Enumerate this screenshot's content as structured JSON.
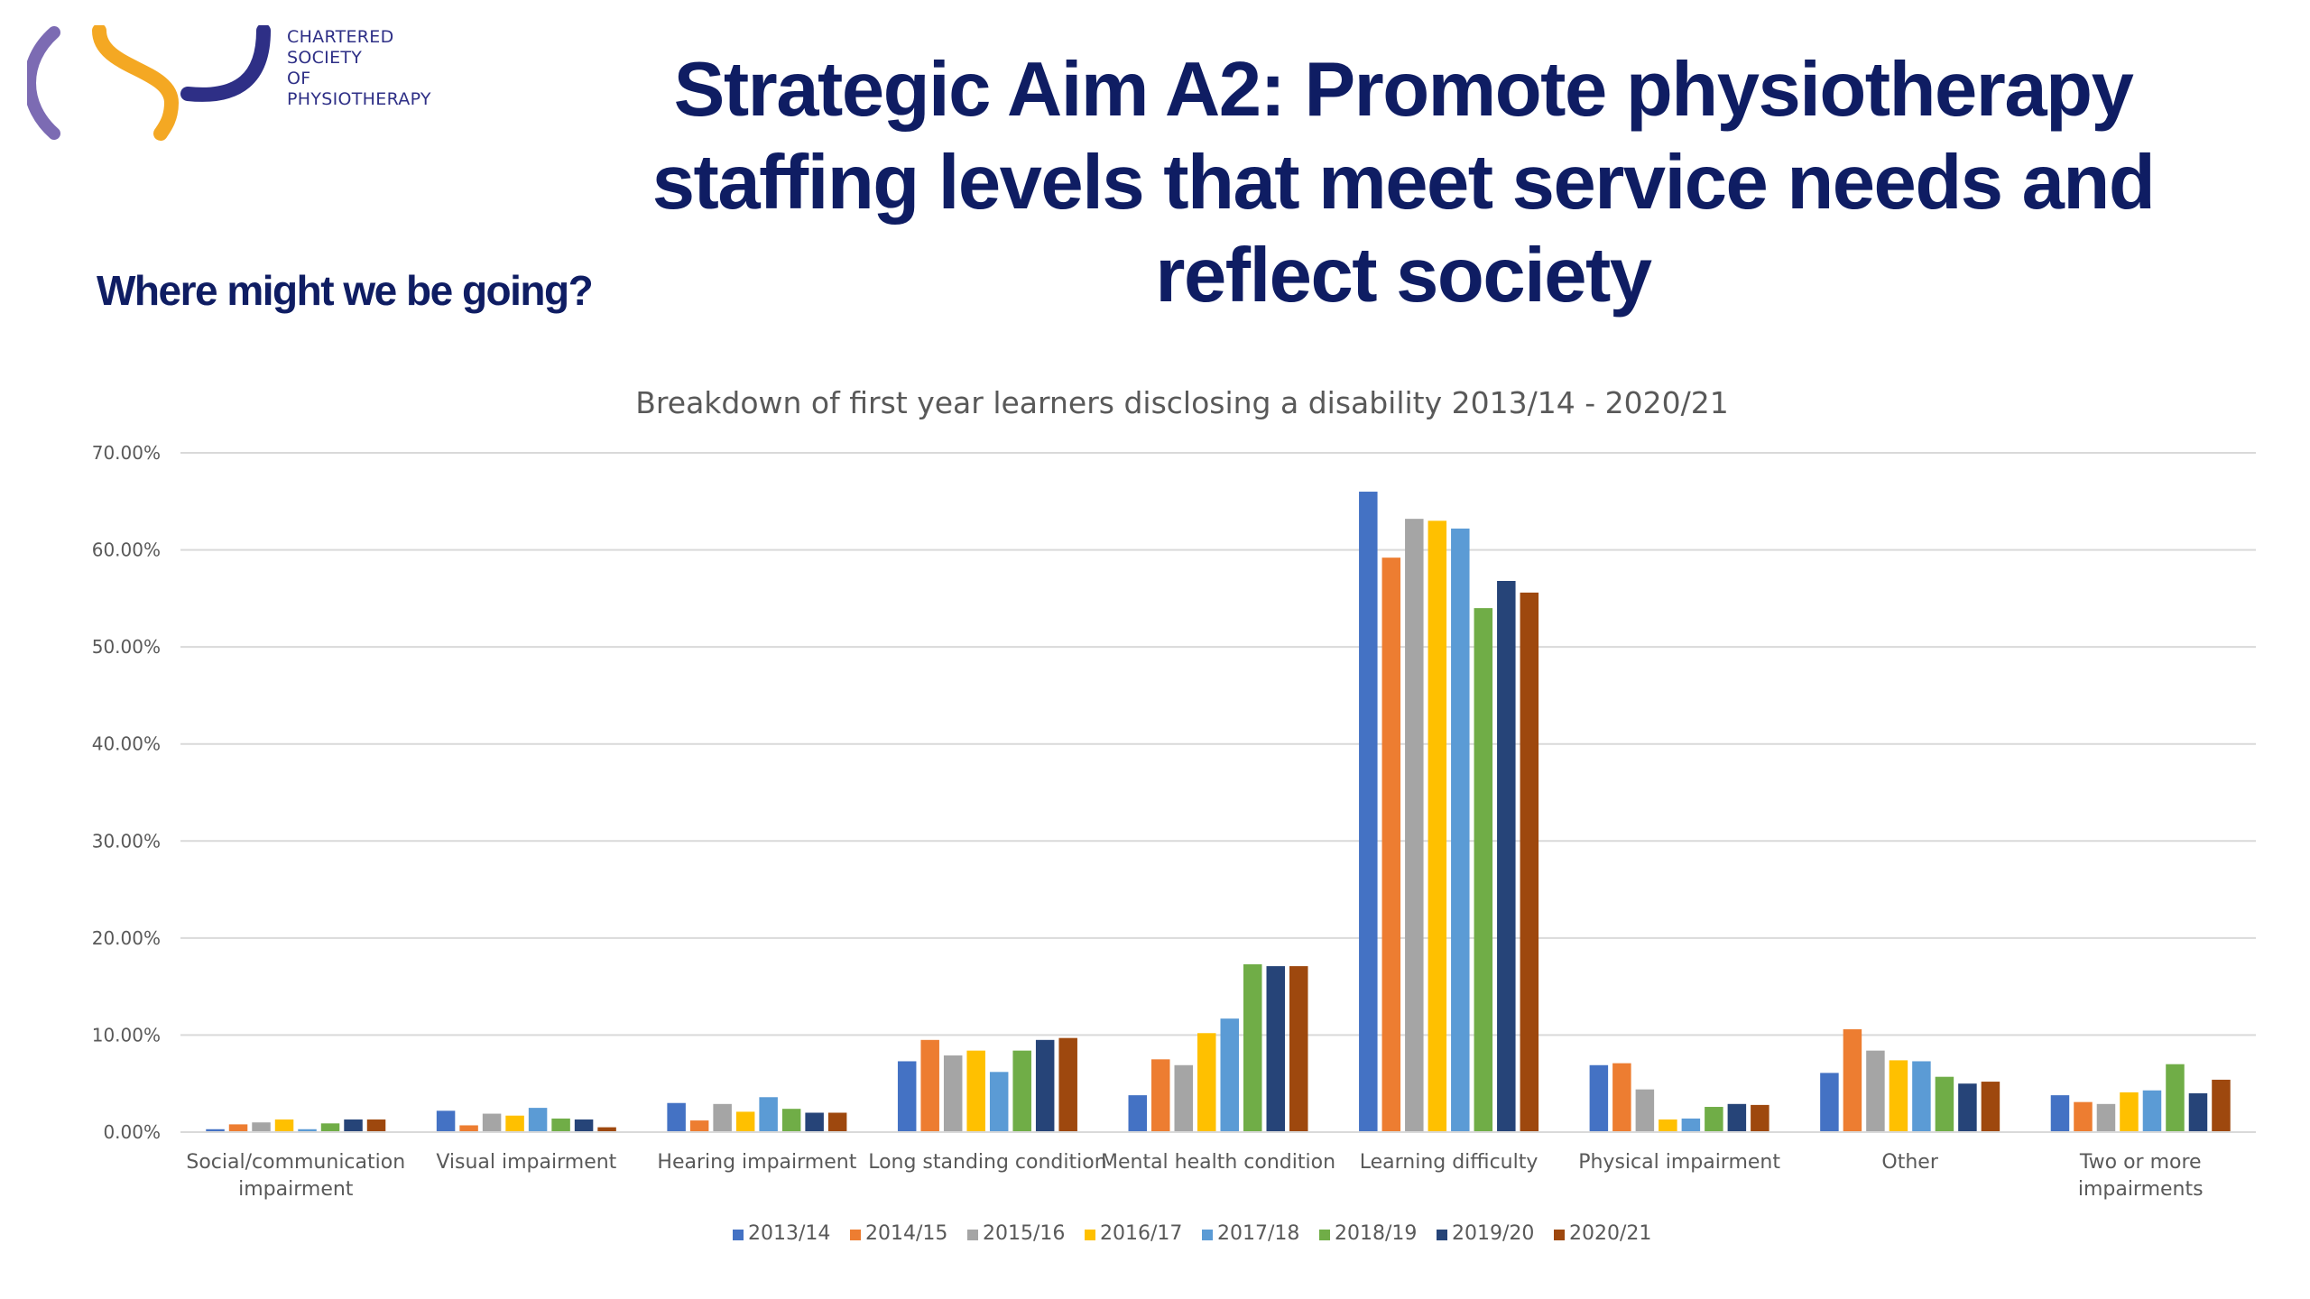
{
  "logo": {
    "lines": [
      "CHARTERED",
      "SOCIETY",
      "OF",
      "PHYSIOTHERAPY"
    ],
    "colors": {
      "purple": "#2e2f86",
      "orange": "#f4a823",
      "lilac": "#7c6bb3"
    }
  },
  "header": {
    "title_lines": [
      "Strategic Aim A2: Promote physiotherapy",
      "staffing levels that meet service needs and",
      "reflect society"
    ],
    "subtitle": "Where might we be going?"
  },
  "chart_data": {
    "type": "bar",
    "title": "Breakdown of first year learners disclosing a disability 2013/14 - 2020/21",
    "xlabel": "",
    "ylabel": "",
    "ylim": [
      0,
      70
    ],
    "yticks": [
      "0.00%",
      "10.00%",
      "20.00%",
      "30.00%",
      "40.00%",
      "50.00%",
      "60.00%",
      "70.00%"
    ],
    "grid": true,
    "legend_position": "bottom",
    "categories": [
      [
        "Social/communication",
        "impairment"
      ],
      [
        "Visual impairment"
      ],
      [
        "Hearing impairment"
      ],
      [
        "Long standing condition"
      ],
      [
        "Mental health condition"
      ],
      [
        "Learning difficulty"
      ],
      [
        "Physical impairment"
      ],
      [
        "Other"
      ],
      [
        "Two or more",
        "impairments"
      ]
    ],
    "series": [
      {
        "name": "2013/14",
        "color": "#4472c4",
        "values": [
          0.3,
          2.2,
          3.0,
          7.3,
          3.8,
          66.0,
          6.9,
          6.1,
          3.8
        ]
      },
      {
        "name": "2014/15",
        "color": "#ed7d31",
        "values": [
          0.8,
          0.7,
          1.2,
          9.5,
          7.5,
          59.2,
          7.1,
          10.6,
          3.1
        ]
      },
      {
        "name": "2015/16",
        "color": "#a5a5a5",
        "values": [
          1.0,
          1.9,
          2.9,
          7.9,
          6.9,
          63.2,
          4.4,
          8.4,
          2.9
        ]
      },
      {
        "name": "2016/17",
        "color": "#ffc000",
        "values": [
          1.3,
          1.7,
          2.1,
          8.4,
          10.2,
          63.0,
          1.3,
          7.4,
          4.1
        ]
      },
      {
        "name": "2017/18",
        "color": "#5b9bd5",
        "values": [
          0.3,
          2.5,
          3.6,
          6.2,
          11.7,
          62.2,
          1.4,
          7.3,
          4.3
        ]
      },
      {
        "name": "2018/19",
        "color": "#70ad47",
        "values": [
          0.9,
          1.4,
          2.4,
          8.4,
          17.3,
          54.0,
          2.6,
          5.7,
          7.0
        ]
      },
      {
        "name": "2019/20",
        "color": "#264478",
        "values": [
          1.3,
          1.3,
          2.0,
          9.5,
          17.1,
          56.8,
          2.9,
          5.0,
          4.0
        ]
      },
      {
        "name": "2020/21",
        "color": "#9e480e",
        "values": [
          1.3,
          0.5,
          2.0,
          9.7,
          17.1,
          55.6,
          2.8,
          5.2,
          5.4
        ]
      }
    ]
  }
}
